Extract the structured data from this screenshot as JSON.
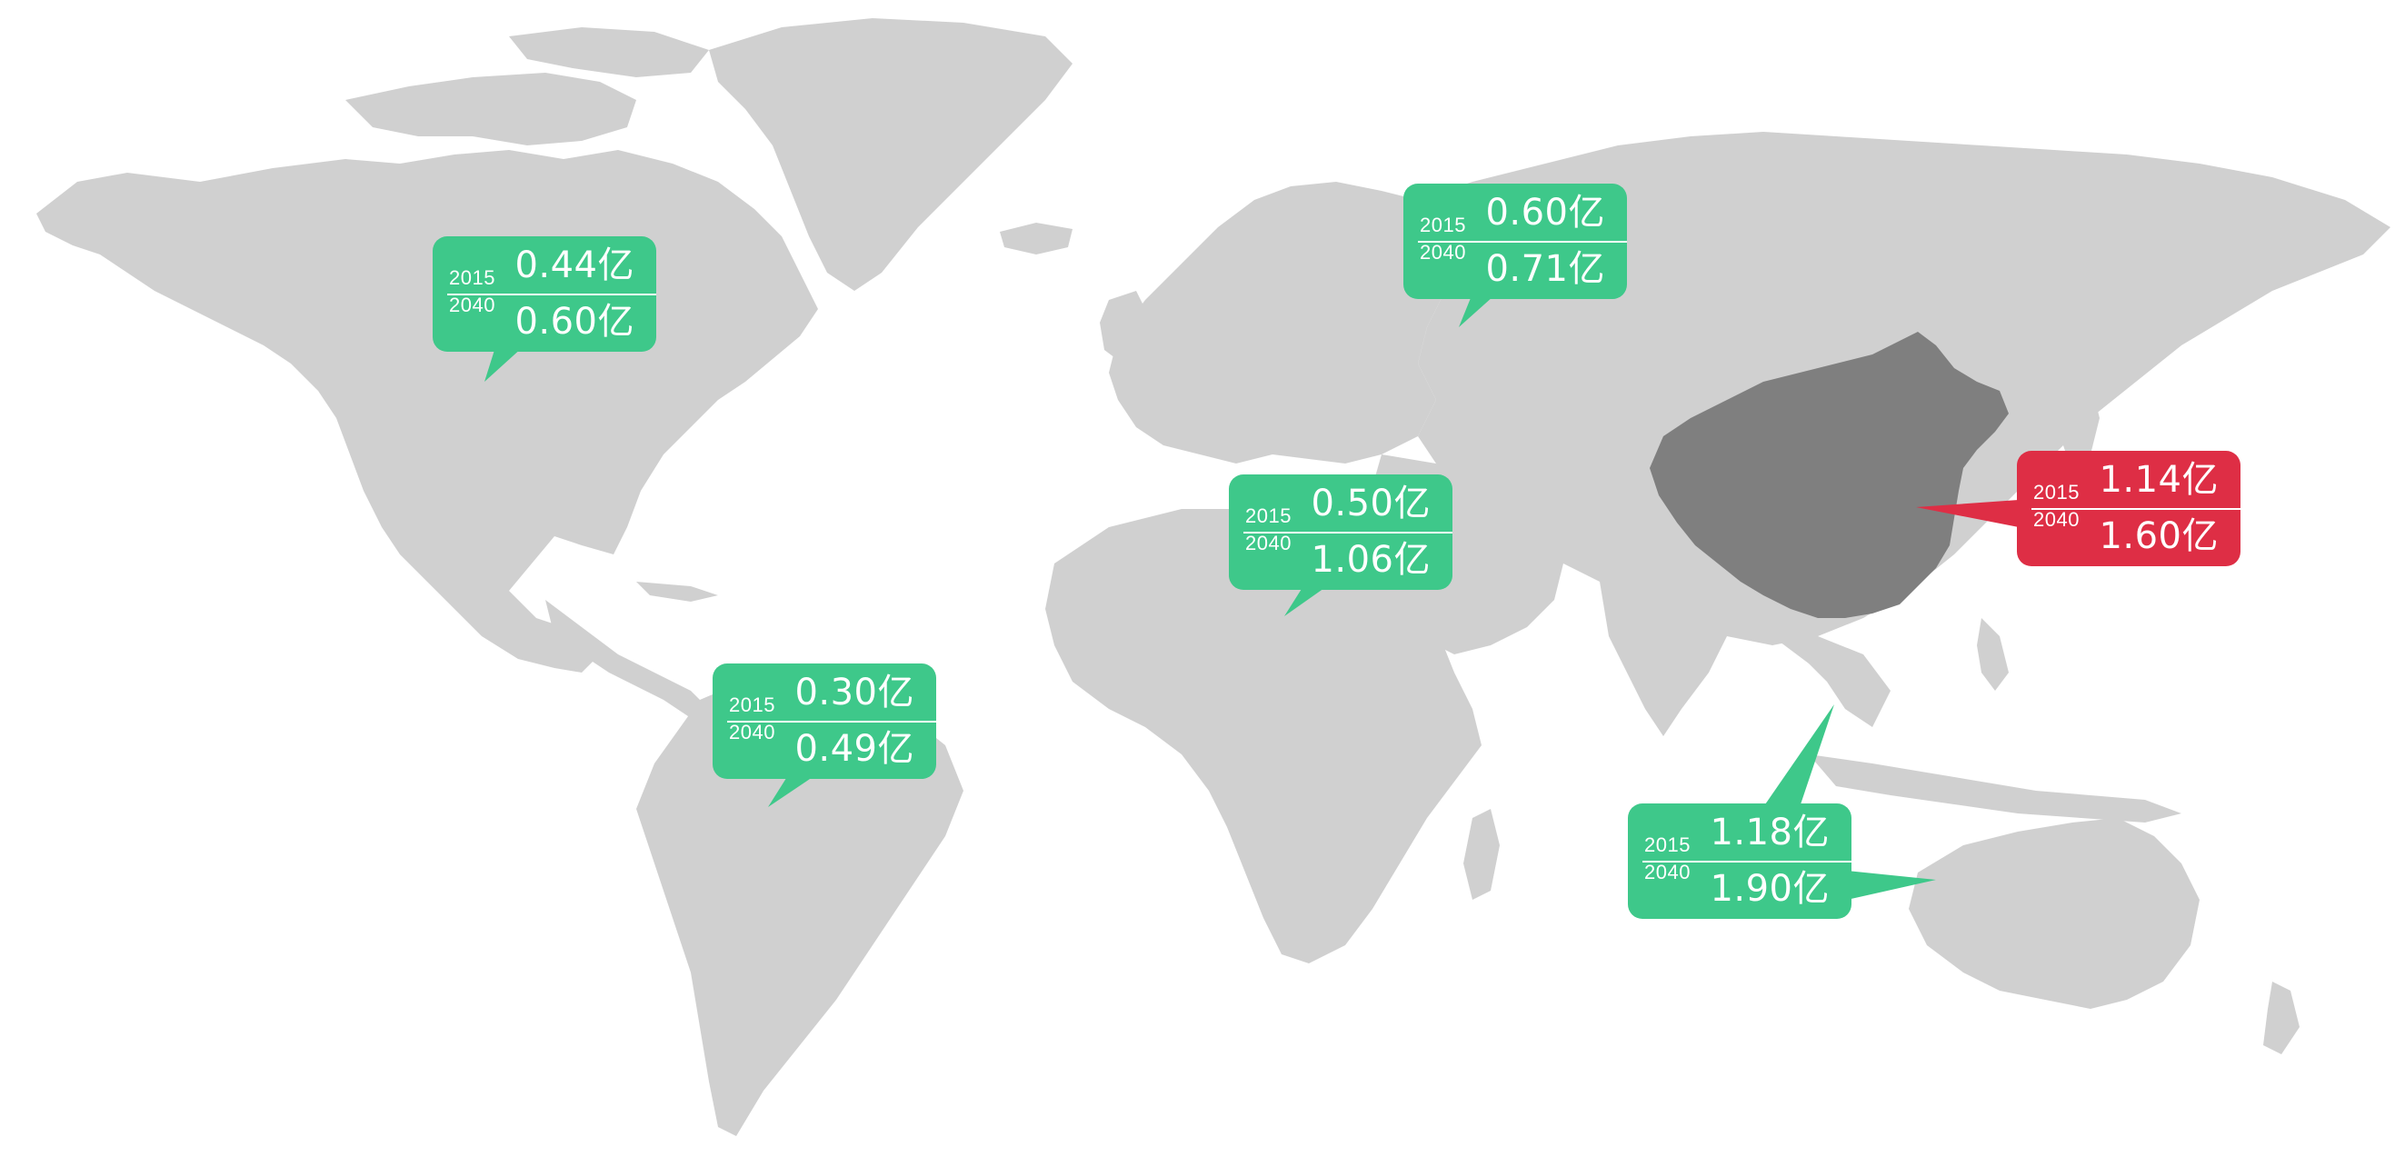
{
  "colors": {
    "land": "#d0d0d0",
    "highlight_country": "#7f7f7f",
    "callout_green": "#3ec88a",
    "callout_red": "#de2e45",
    "text": "#ffffff"
  },
  "highlighted_country": "China",
  "callouts": [
    {
      "region": "North America",
      "color": "green",
      "year_a": "2015",
      "year_b": "2040",
      "value_a": "0.44亿",
      "value_b": "0.60亿"
    },
    {
      "region": "Europe / Russia",
      "color": "green",
      "year_a": "2015",
      "year_b": "2040",
      "value_a": "0.60亿",
      "value_b": "0.71亿"
    },
    {
      "region": "Middle East / North Africa",
      "color": "green",
      "year_a": "2015",
      "year_b": "2040",
      "value_a": "0.50亿",
      "value_b": "1.06亿"
    },
    {
      "region": "South America",
      "color": "green",
      "year_a": "2015",
      "year_b": "2040",
      "value_a": "0.30亿",
      "value_b": "0.49亿"
    },
    {
      "region": "China",
      "color": "red",
      "year_a": "2015",
      "year_b": "2040",
      "value_a": "1.14亿",
      "value_b": "1.60亿"
    },
    {
      "region": "Southeast Asia / Oceania",
      "color": "green",
      "year_a": "2015",
      "year_b": "2040",
      "value_a": "1.18亿",
      "value_b": "1.90亿"
    }
  ]
}
